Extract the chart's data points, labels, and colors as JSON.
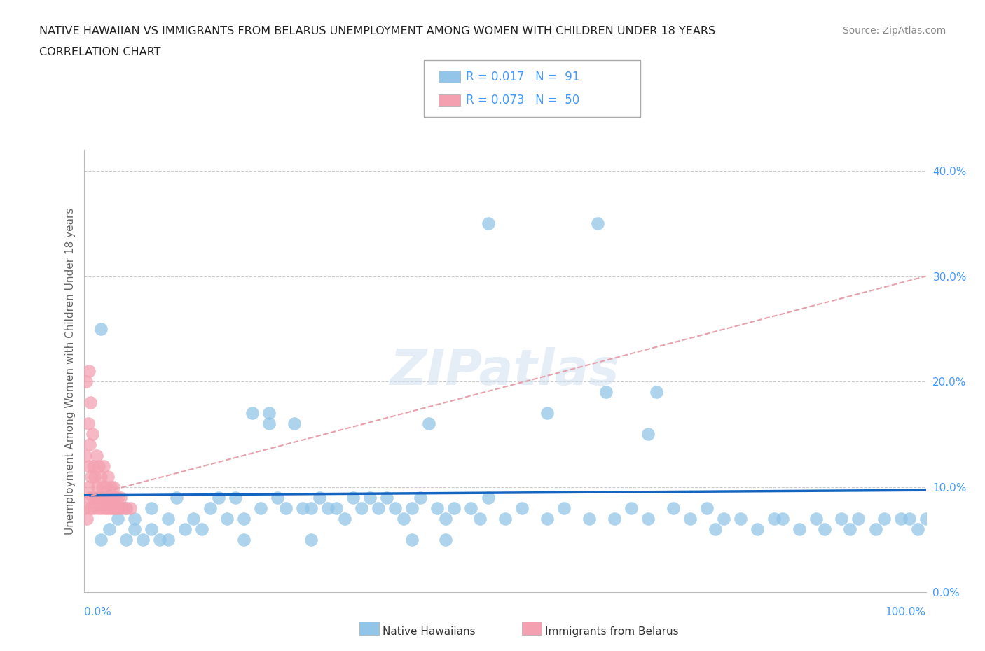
{
  "title_line1": "NATIVE HAWAIIAN VS IMMIGRANTS FROM BELARUS UNEMPLOYMENT AMONG WOMEN WITH CHILDREN UNDER 18 YEARS",
  "title_line2": "CORRELATION CHART",
  "source": "Source: ZipAtlas.com",
  "ylabel": "Unemployment Among Women with Children Under 18 years",
  "color_hawaiian": "#92C5E8",
  "color_belarus": "#F4A0B0",
  "trendline_hawaiian_color": "#1565C0",
  "trendline_belarus_color": "#E8A0AA",
  "background_color": "#FFFFFF",
  "xlim": [
    0.0,
    1.0
  ],
  "ylim": [
    0.0,
    0.42
  ],
  "nh_x": [
    0.02,
    0.02,
    0.03,
    0.04,
    0.05,
    0.05,
    0.06,
    0.06,
    0.07,
    0.08,
    0.08,
    0.09,
    0.1,
    0.1,
    0.11,
    0.12,
    0.13,
    0.14,
    0.15,
    0.16,
    0.17,
    0.18,
    0.19,
    0.2,
    0.21,
    0.22,
    0.23,
    0.24,
    0.25,
    0.26,
    0.27,
    0.28,
    0.29,
    0.3,
    0.31,
    0.32,
    0.33,
    0.34,
    0.35,
    0.36,
    0.37,
    0.38,
    0.39,
    0.4,
    0.41,
    0.42,
    0.43,
    0.44,
    0.46,
    0.47,
    0.48,
    0.5,
    0.52,
    0.55,
    0.57,
    0.6,
    0.62,
    0.63,
    0.65,
    0.67,
    0.68,
    0.7,
    0.72,
    0.74,
    0.75,
    0.76,
    0.78,
    0.8,
    0.82,
    0.83,
    0.85,
    0.87,
    0.88,
    0.9,
    0.91,
    0.92,
    0.94,
    0.95,
    0.97,
    0.99,
    1.0,
    0.22,
    0.27,
    0.55,
    0.61,
    0.48,
    0.39,
    0.19,
    0.43,
    0.67,
    0.98
  ],
  "nh_y": [
    0.25,
    0.05,
    0.06,
    0.07,
    0.05,
    0.08,
    0.06,
    0.07,
    0.05,
    0.06,
    0.08,
    0.05,
    0.07,
    0.05,
    0.09,
    0.06,
    0.07,
    0.06,
    0.08,
    0.09,
    0.07,
    0.09,
    0.07,
    0.17,
    0.08,
    0.16,
    0.09,
    0.08,
    0.16,
    0.08,
    0.08,
    0.09,
    0.08,
    0.08,
    0.07,
    0.09,
    0.08,
    0.09,
    0.08,
    0.09,
    0.08,
    0.07,
    0.08,
    0.09,
    0.16,
    0.08,
    0.07,
    0.08,
    0.08,
    0.07,
    0.09,
    0.07,
    0.08,
    0.07,
    0.08,
    0.07,
    0.19,
    0.07,
    0.08,
    0.07,
    0.19,
    0.08,
    0.07,
    0.08,
    0.06,
    0.07,
    0.07,
    0.06,
    0.07,
    0.07,
    0.06,
    0.07,
    0.06,
    0.07,
    0.06,
    0.07,
    0.06,
    0.07,
    0.07,
    0.06,
    0.07,
    0.17,
    0.05,
    0.17,
    0.35,
    0.35,
    0.05,
    0.05,
    0.05,
    0.15,
    0.07
  ],
  "bel_x": [
    0.001,
    0.002,
    0.003,
    0.004,
    0.005,
    0.005,
    0.006,
    0.006,
    0.007,
    0.007,
    0.008,
    0.008,
    0.009,
    0.01,
    0.01,
    0.011,
    0.012,
    0.013,
    0.014,
    0.015,
    0.016,
    0.017,
    0.018,
    0.019,
    0.02,
    0.021,
    0.022,
    0.023,
    0.024,
    0.025,
    0.026,
    0.027,
    0.028,
    0.029,
    0.03,
    0.031,
    0.032,
    0.033,
    0.034,
    0.035,
    0.036,
    0.037,
    0.038,
    0.039,
    0.04,
    0.042,
    0.044,
    0.046,
    0.05,
    0.055
  ],
  "bel_y": [
    0.08,
    0.13,
    0.2,
    0.07,
    0.1,
    0.16,
    0.12,
    0.21,
    0.09,
    0.14,
    0.08,
    0.18,
    0.11,
    0.09,
    0.15,
    0.12,
    0.08,
    0.11,
    0.09,
    0.13,
    0.1,
    0.08,
    0.12,
    0.09,
    0.11,
    0.08,
    0.1,
    0.09,
    0.12,
    0.08,
    0.1,
    0.09,
    0.08,
    0.11,
    0.09,
    0.08,
    0.1,
    0.09,
    0.08,
    0.1,
    0.09,
    0.08,
    0.09,
    0.08,
    0.09,
    0.08,
    0.09,
    0.08,
    0.08,
    0.08
  ],
  "nh_trend_x": [
    0.0,
    1.0
  ],
  "nh_trend_y": [
    0.092,
    0.097
  ],
  "bel_trend_x": [
    0.0,
    1.0
  ],
  "bel_trend_y": [
    0.09,
    0.3
  ]
}
